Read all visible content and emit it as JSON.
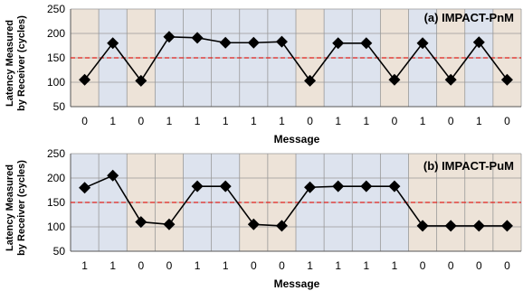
{
  "colors": {
    "bit0_band": "#ede3d8",
    "bit1_band": "#dde3ee",
    "line": "#000000",
    "threshold": "#e0201b",
    "grid": "#999999"
  },
  "chart_data": [
    {
      "type": "line",
      "title": "(a) IMPACT-PnM",
      "ylabel_line1": "Latency Measured",
      "ylabel_line2": "by Receiver (cycles)",
      "xlabel": "Message",
      "ylim": [
        50,
        250
      ],
      "yticks": [
        50,
        100,
        150,
        200,
        250
      ],
      "threshold": 150,
      "categories": [
        "0",
        "1",
        "0",
        "1",
        "1",
        "1",
        "1",
        "1",
        "0",
        "1",
        "1",
        "0",
        "1",
        "0",
        "1",
        "0"
      ],
      "values": [
        105,
        180,
        103,
        193,
        191,
        181,
        181,
        183,
        103,
        180,
        180,
        105,
        180,
        105,
        182,
        105
      ],
      "title_position": "top-right",
      "grid": true
    },
    {
      "type": "line",
      "title": "(b) IMPACT-PuM",
      "ylabel_line1": "Latency Measured",
      "ylabel_line2": "by Receiver (cycles)",
      "xlabel": "Message",
      "ylim": [
        50,
        250
      ],
      "yticks": [
        50,
        100,
        150,
        200,
        250
      ],
      "threshold": 150,
      "categories": [
        "1",
        "1",
        "0",
        "0",
        "1",
        "1",
        "0",
        "0",
        "1",
        "1",
        "1",
        "1",
        "0",
        "0",
        "0",
        "0"
      ],
      "values": [
        180,
        205,
        110,
        105,
        183,
        183,
        105,
        102,
        181,
        183,
        183,
        183,
        102,
        102,
        102,
        102
      ],
      "title_position": "top-right",
      "grid": true
    }
  ]
}
